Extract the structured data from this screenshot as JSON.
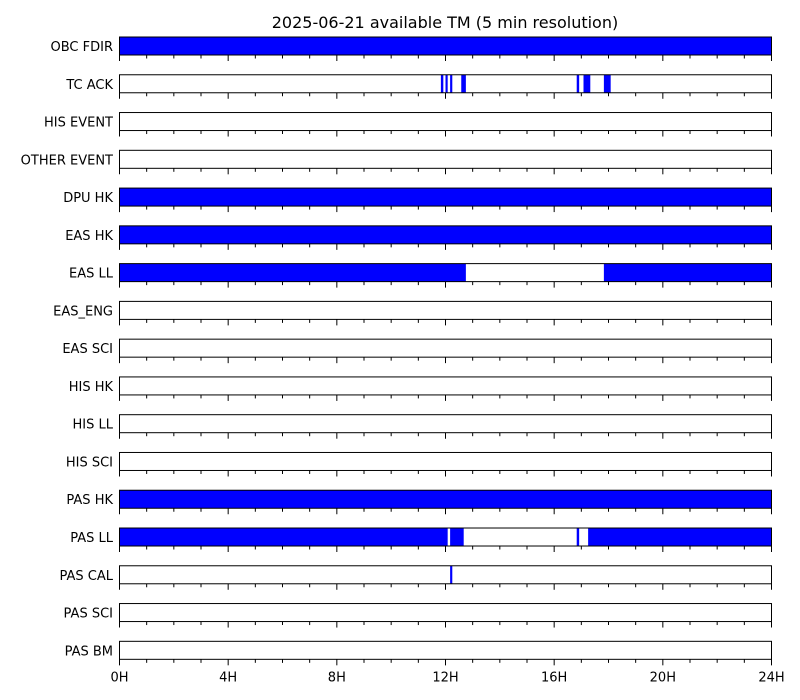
{
  "chart_data": {
    "type": "bar",
    "title": "2025-06-21 available TM (5 min resolution)",
    "xlabel": "",
    "ylabel": "",
    "x_unit": "hours",
    "xlim": [
      0,
      24
    ],
    "x_ticks": [
      0,
      4,
      8,
      12,
      16,
      20,
      24
    ],
    "x_tick_labels": [
      "0H",
      "4H",
      "8H",
      "12H",
      "16H",
      "20H",
      "24H"
    ],
    "minor_tick_step_hours": 1,
    "grid": false,
    "color": "#0000ff",
    "rows": [
      {
        "name": "OBC FDIR",
        "intervals": [
          [
            0,
            24
          ]
        ]
      },
      {
        "name": "TC ACK",
        "intervals": [
          [
            11.83,
            11.92
          ],
          [
            12.0,
            12.08
          ],
          [
            12.17,
            12.25
          ],
          [
            12.58,
            12.75
          ],
          [
            16.83,
            16.92
          ],
          [
            17.08,
            17.33
          ],
          [
            17.83,
            18.08
          ]
        ]
      },
      {
        "name": "HIS EVENT",
        "intervals": []
      },
      {
        "name": "OTHER EVENT",
        "intervals": []
      },
      {
        "name": "DPU HK",
        "intervals": [
          [
            0,
            24
          ]
        ]
      },
      {
        "name": "EAS HK",
        "intervals": [
          [
            0,
            24
          ]
        ]
      },
      {
        "name": "EAS LL",
        "intervals": [
          [
            0,
            12.75
          ],
          [
            17.83,
            24
          ]
        ]
      },
      {
        "name": "EAS_ENG",
        "intervals": []
      },
      {
        "name": "EAS SCI",
        "intervals": []
      },
      {
        "name": "HIS HK",
        "intervals": []
      },
      {
        "name": "HIS LL",
        "intervals": []
      },
      {
        "name": "HIS SCI",
        "intervals": []
      },
      {
        "name": "PAS HK",
        "intervals": [
          [
            0,
            24
          ]
        ]
      },
      {
        "name": "PAS LL",
        "intervals": [
          [
            0,
            12.08
          ],
          [
            12.17,
            12.67
          ],
          [
            16.83,
            16.92
          ],
          [
            17.25,
            24
          ]
        ]
      },
      {
        "name": "PAS CAL",
        "intervals": [
          [
            12.17,
            12.25
          ]
        ]
      },
      {
        "name": "PAS SCI",
        "intervals": []
      },
      {
        "name": "PAS BM",
        "intervals": []
      }
    ]
  }
}
